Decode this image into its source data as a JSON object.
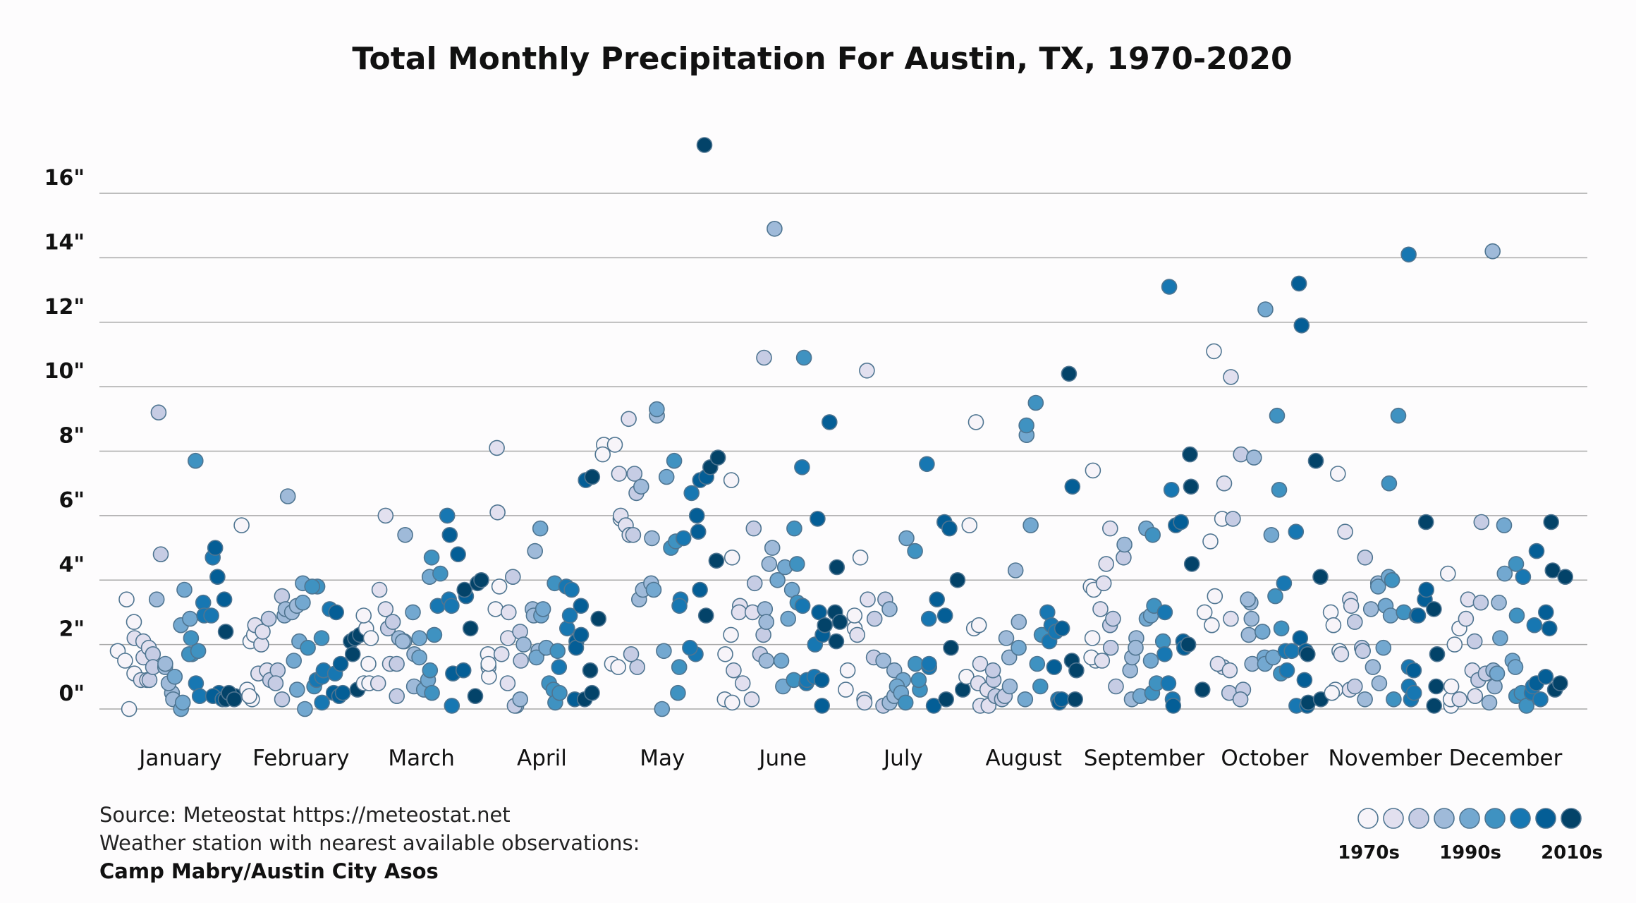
{
  "chart_data": {
    "type": "scatter",
    "title": "Total Monthly Precipitation For Austin, TX, 1970-2020",
    "xlabel": "",
    "ylabel": "",
    "ylim": [
      0,
      17.5
    ],
    "y_ticks": [
      "0\"",
      "2\"",
      "4\"",
      "6\"",
      "8\"",
      "10\"",
      "12\"",
      "14\"",
      "16\""
    ],
    "y_tick_values": [
      0,
      2,
      4,
      6,
      8,
      10,
      12,
      14,
      16
    ],
    "grid": true,
    "categories": [
      "January",
      "February",
      "March",
      "April",
      "May",
      "June",
      "July",
      "August",
      "September",
      "October",
      "November",
      "December"
    ],
    "point_order": "years in ascending order within each month",
    "series": [
      {
        "month": "January",
        "values": [
          1.8,
          0,
          1.5,
          3.4,
          2.7,
          1.1,
          2.2,
          0.9,
          2.1,
          1.6,
          0.9,
          1.9,
          1.7,
          0.9,
          1.3,
          9.2,
          4.8,
          3.4,
          1.3,
          1.4,
          0.5,
          0.3,
          0.8,
          1.0,
          0,
          2.6,
          0.2,
          3.7,
          2.8,
          1.7,
          1.7,
          2.2,
          1.8,
          7.7,
          0.8,
          0.4,
          3.3,
          2.9,
          4.7,
          2.9,
          5.0,
          0.5,
          0.4,
          4.1,
          0.3,
          3.4,
          2.4,
          0.3,
          0.4,
          0.5,
          0.3
        ]
      },
      {
        "month": "February",
        "values": [
          5.7,
          0.6,
          0.3,
          2.1,
          0.4,
          2.3,
          2.6,
          1.1,
          2.0,
          2.4,
          1.2,
          0.9,
          2.8,
          1.2,
          0.8,
          3.5,
          0.3,
          2.9,
          3.1,
          6.6,
          3.0,
          3.2,
          1.5,
          2.1,
          0.6,
          3.9,
          3.3,
          0,
          1.9,
          0.7,
          3.8,
          3.8,
          2.2,
          0.9,
          1.0,
          0.2,
          1.2,
          1.1,
          3.1,
          3.0,
          0.5,
          0.4,
          0.5,
          1.4,
          2.1,
          1.7,
          2.2,
          0.6,
          2.3
        ]
      },
      {
        "month": "March",
        "values": [
          2.5,
          0.8,
          2.9,
          1.4,
          0.8,
          2.2,
          3.7,
          0.8,
          3.1,
          6.0,
          1.4,
          2.5,
          0.4,
          2.7,
          1.4,
          2.1,
          2.2,
          5.4,
          2.1,
          1.7,
          0.7,
          1.6,
          3.0,
          0.6,
          2.2,
          4.1,
          0.9,
          4.7,
          1.2,
          0.5,
          2.3,
          4.2,
          3.2,
          6.0,
          3.4,
          3.2,
          0.1,
          5.4,
          1.1,
          1.2,
          4.8,
          3.5,
          2.5,
          3.7,
          0.4,
          3.9,
          4.0
        ]
      },
      {
        "month": "April",
        "values": [
          1.3,
          1.0,
          1.7,
          1.4,
          3.1,
          3.8,
          8.1,
          6.1,
          1.7,
          3.0,
          0.8,
          2.2,
          4.1,
          0.1,
          0.1,
          1.5,
          2.4,
          0.3,
          2.0,
          3.1,
          4.9,
          2.9,
          1.8,
          2.9,
          1.6,
          3.1,
          5.6,
          1.9,
          0.8,
          0.6,
          1.8,
          0.2,
          3.9,
          0.5,
          1.3,
          3.8,
          2.5,
          2.9,
          3.7,
          2.1,
          0.3,
          3.2,
          1.9,
          2.3,
          7.1,
          0.3,
          7.2,
          1.2,
          0.5,
          2.8
        ]
      },
      {
        "month": "May",
        "values": [
          8.2,
          7.9,
          1.4,
          8.2,
          1.3,
          5.9,
          6.0,
          5.7,
          7.3,
          9.0,
          5.4,
          5.4,
          1.3,
          1.7,
          7.3,
          6.7,
          3.4,
          6.9,
          3.7,
          3.9,
          9.1,
          5.3,
          3.7,
          9.3,
          1.8,
          0,
          7.2,
          7.7,
          5.0,
          5.2,
          1.3,
          0.5,
          3.4,
          3.2,
          5.3,
          6.7,
          1.7,
          1.9,
          3.7,
          5.5,
          6.0,
          7.1,
          7.2,
          17.5,
          2.9,
          7.5,
          4.6,
          7.8
        ]
      },
      {
        "month": "June",
        "values": [
          0.3,
          4.7,
          1.7,
          2.3,
          0.2,
          7.1,
          1.2,
          3.2,
          3.0,
          0.8,
          0.3,
          3.0,
          3.9,
          5.6,
          1.7,
          2.3,
          10.9,
          3.1,
          2.7,
          1.5,
          4.5,
          5.0,
          14.9,
          4.0,
          1.5,
          0.7,
          4.4,
          2.8,
          3.7,
          0.9,
          3.3,
          5.6,
          4.5,
          10.9,
          0.8,
          3.2,
          7.5,
          0.9,
          1.0,
          2.0,
          5.9,
          0.1,
          2.3,
          3.0,
          0.9,
          8.9,
          2.6,
          3.0,
          2.1,
          4.4,
          2.7
        ]
      },
      {
        "month": "July",
        "values": [
          0.6,
          1.2,
          2.5,
          2.9,
          4.7,
          2.3,
          0.3,
          0.2,
          10.5,
          3.4,
          2.8,
          1.6,
          0.1,
          3.4,
          1.5,
          3.1,
          1.2,
          0.2,
          0.4,
          0.9,
          0.7,
          0.5,
          5.3,
          0.2,
          4.9,
          0.6,
          1.4,
          0.9,
          2.8,
          1.3,
          7.6,
          1.4,
          3.4,
          0.1,
          5.8,
          2.9,
          5.6,
          0.3,
          1.9,
          4.0,
          0.6
        ]
      },
      {
        "month": "August",
        "values": [
          1.0,
          5.7,
          2.5,
          8.9,
          2.6,
          0.1,
          0.8,
          1.4,
          0.1,
          0.6,
          0.9,
          1.2,
          0.4,
          0.3,
          0.4,
          1.6,
          2.2,
          4.3,
          0.7,
          2.7,
          1.9,
          0.3,
          8.5,
          5.7,
          8.8,
          1.4,
          9.5,
          2.3,
          0.7,
          3.0,
          2.1,
          2.6,
          2.4,
          0.3,
          1.3,
          2.5,
          0.2,
          0.3,
          6.9,
          0.3,
          10.4,
          1.5,
          1.2
        ]
      },
      {
        "month": "September",
        "values": [
          3.8,
          2.2,
          1.5,
          1.6,
          7.4,
          3.7,
          3.1,
          3.9,
          1.5,
          4.5,
          5.6,
          2.6,
          1.9,
          2.8,
          0.7,
          4.7,
          5.1,
          1.2,
          0.3,
          1.6,
          2.2,
          1.9,
          0.4,
          5.6,
          2.8,
          2.9,
          1.5,
          0.5,
          0.8,
          5.4,
          3.2,
          2.1,
          1.7,
          3.0,
          0.8,
          13.1,
          0.3,
          6.8,
          0.1,
          5.7,
          5.8,
          2.1,
          1.9,
          6.9,
          2.0,
          7.9,
          4.5,
          0.6
        ]
      },
      {
        "month": "October",
        "values": [
          5.2,
          3.0,
          11.1,
          2.6,
          3.5,
          5.9,
          1.3,
          1.4,
          1.2,
          7.0,
          2.8,
          10.3,
          0.5,
          5.9,
          7.9,
          0.6,
          0.3,
          2.3,
          3.3,
          3.4,
          2.8,
          1.4,
          7.8,
          2.4,
          1.6,
          1.4,
          12.4,
          5.4,
          1.6,
          3.5,
          9.1,
          2.5,
          1.1,
          6.8,
          1.8,
          3.9,
          1.8,
          1.2,
          5.5,
          0.1,
          2.2,
          13.2,
          0.9,
          0.1,
          11.9,
          1.8,
          1.7,
          0.2,
          7.7,
          4.1,
          0.3
        ]
      },
      {
        "month": "November",
        "values": [
          3.0,
          2.6,
          0.6,
          0.5,
          7.3,
          1.8,
          1.7,
          5.5,
          0.6,
          3.4,
          3.2,
          0.7,
          2.7,
          1.9,
          4.7,
          1.8,
          0.3,
          3.1,
          1.3,
          0.8,
          3.9,
          3.8,
          1.9,
          3.2,
          4.1,
          2.9,
          7.0,
          4.0,
          0.3,
          9.1,
          3.0,
          14.1,
          0.7,
          1.3,
          0.3,
          0.5,
          1.2,
          2.9,
          2.9,
          3.4,
          3.7,
          5.8,
          3.1,
          0.1,
          1.7,
          0.7
        ]
      },
      {
        "month": "December",
        "values": [
          0.1,
          4.2,
          0.3,
          0.7,
          2.0,
          2.5,
          0.3,
          2.8,
          3.4,
          1.2,
          0.4,
          2.1,
          3.3,
          5.8,
          0.9,
          1.1,
          0.2,
          1.2,
          14.2,
          3.3,
          0.7,
          5.7,
          1.1,
          2.2,
          4.2,
          1.5,
          1.3,
          4.5,
          2.9,
          0.4,
          0.5,
          0.1,
          4.1,
          0.5,
          0.7,
          2.6,
          0.3,
          4.9,
          0.8,
          1.0,
          3.0,
          2.5,
          4.3,
          0.6,
          5.8,
          0.8,
          4.1
        ]
      }
    ],
    "color_scale": [
      "#f7f4f9",
      "#e2e0ef",
      "#c6cce4",
      "#9fbad9",
      "#73a8d0",
      "#3f92c1",
      "#1777b2",
      "#045e96",
      "#034369"
    ],
    "legend": {
      "placement": "bottom-right",
      "labels": [
        "1970s",
        "1990s",
        "2010s"
      ]
    }
  },
  "footer": {
    "source": "Source: Meteostat https://meteostat.net",
    "station_line": "Weather station with nearest available observations:",
    "station_name": "Camp Mabry/Austin City Asos"
  }
}
